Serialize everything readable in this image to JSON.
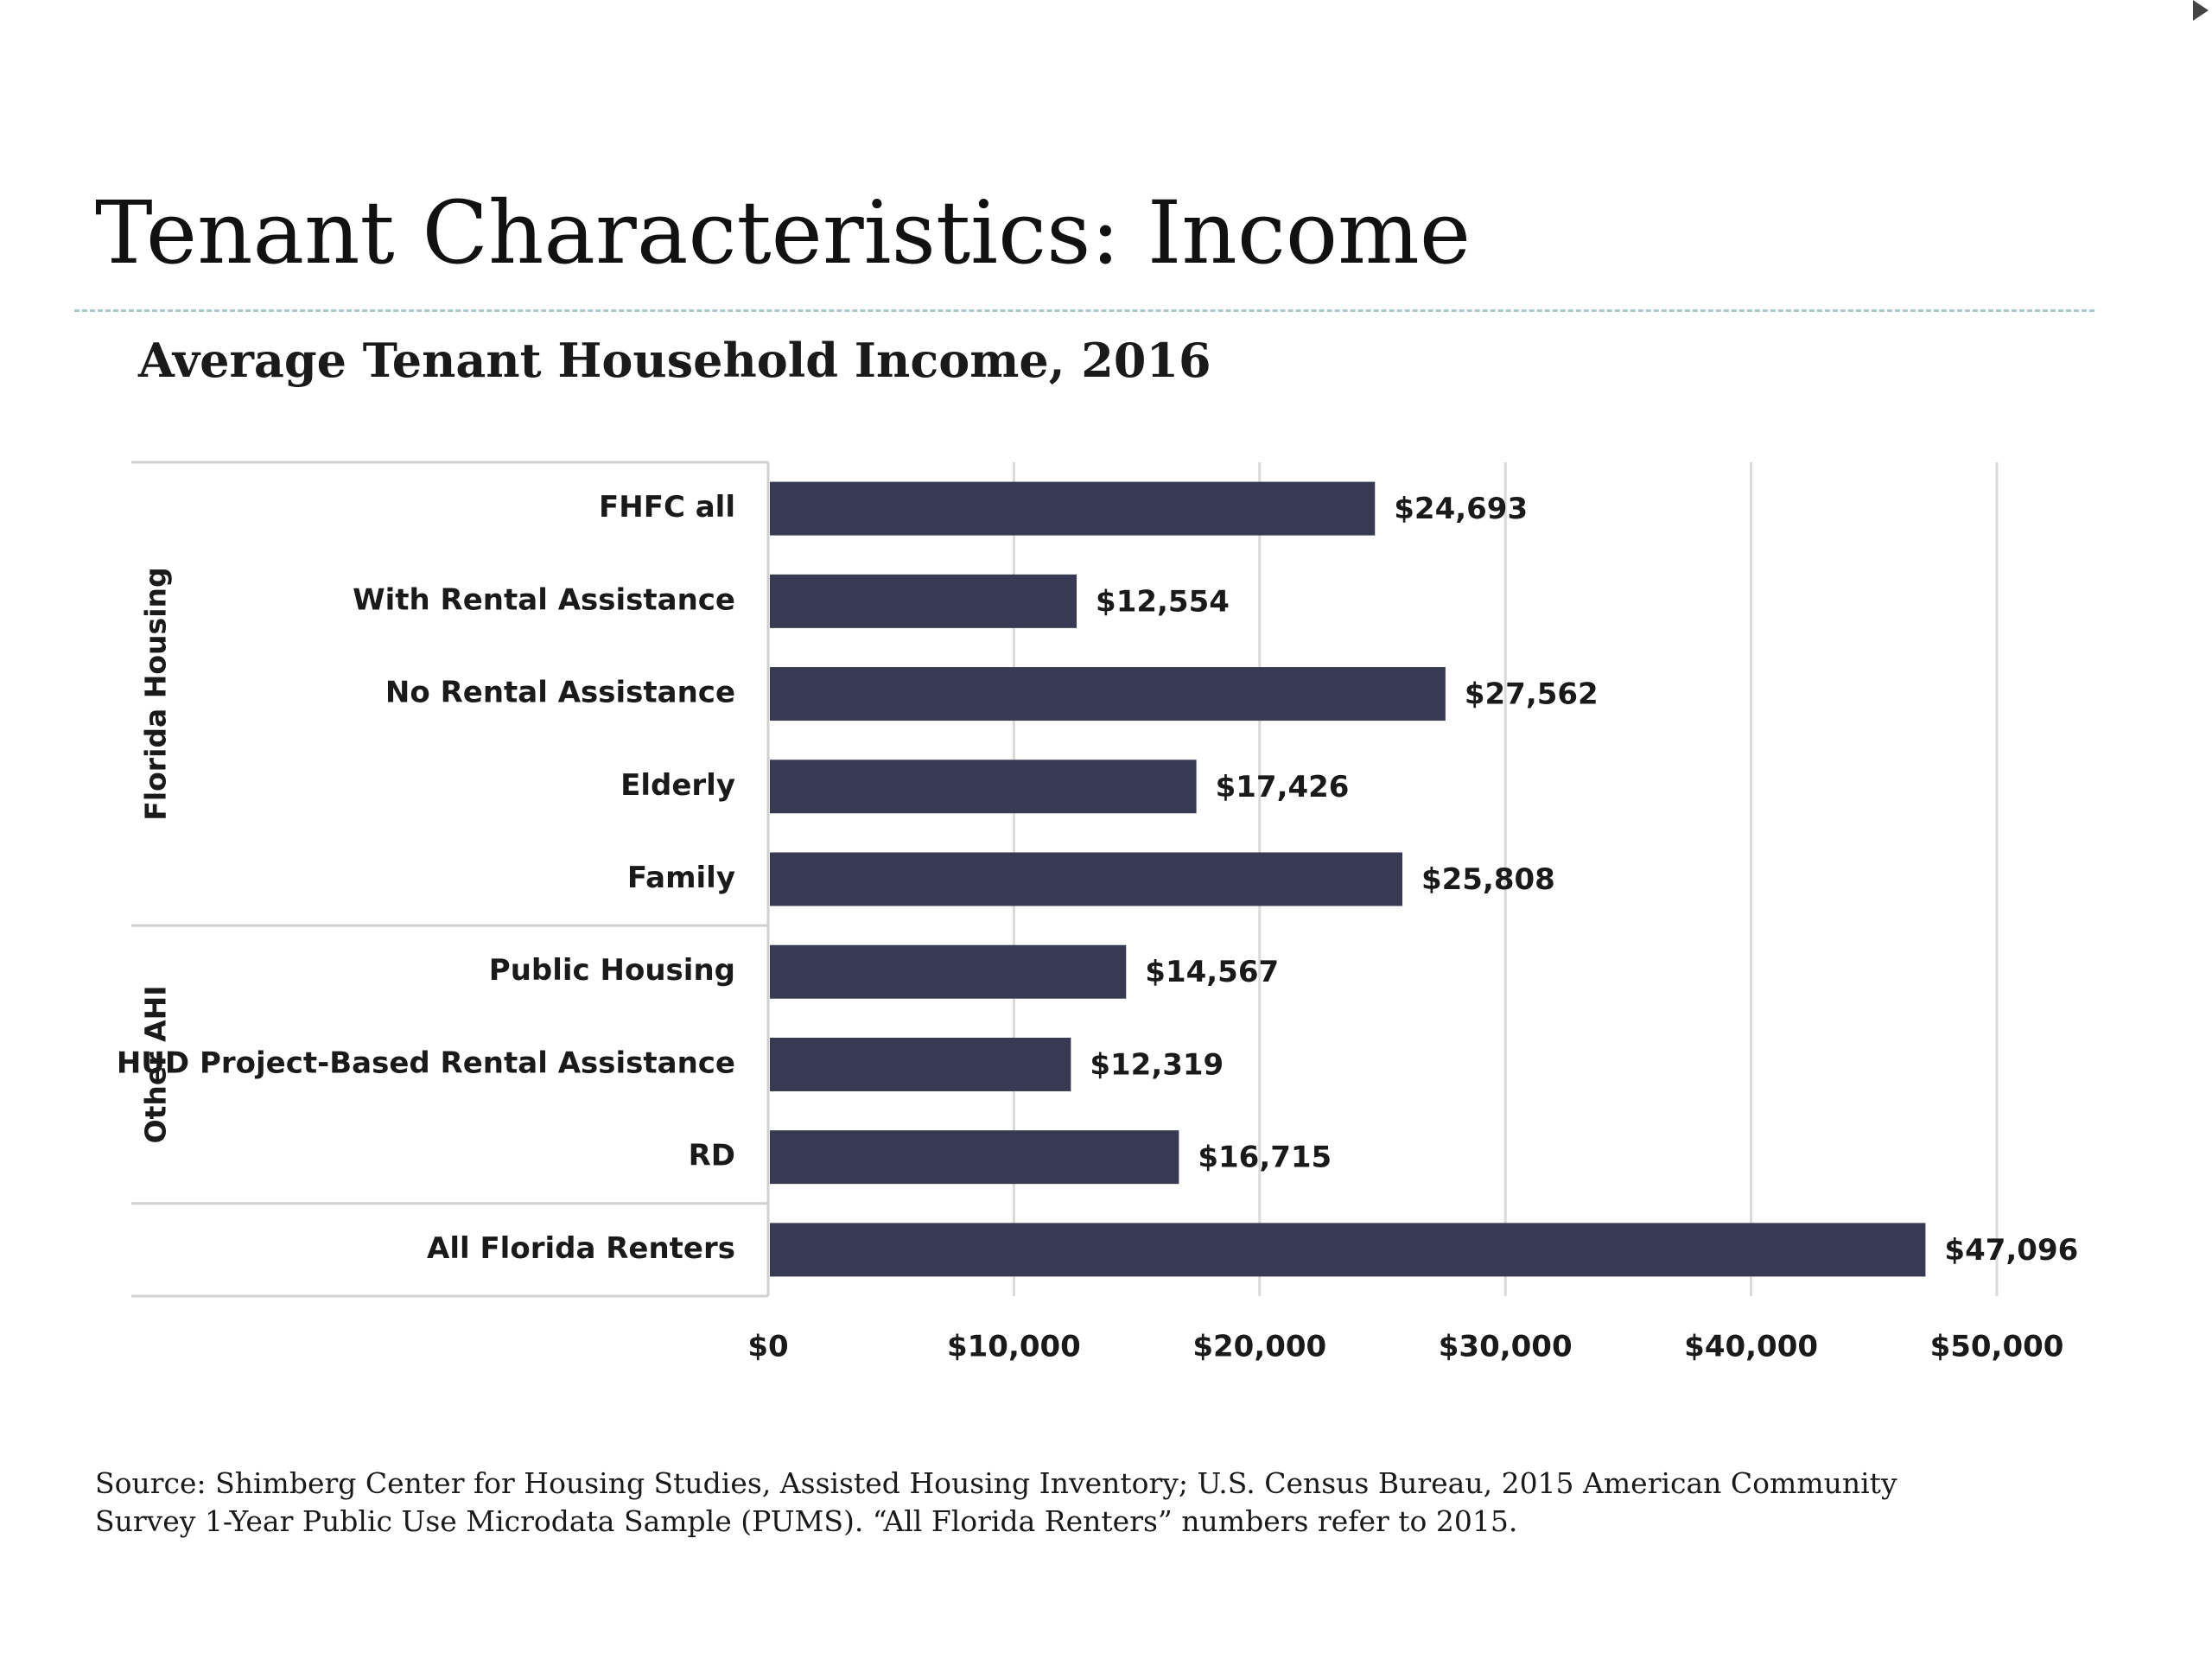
{
  "slide": {
    "title": "Tenant Characteristics: Income",
    "source_lines": [
      "Source: Shimberg Center for Housing Studies, Assisted Housing Inventory; U.S. Census Bureau, 2015 American Community",
      "Survey 1-Year Public Use Microdata Sample (PUMS). “All Florida Renters” numbers refer to 2015."
    ]
  },
  "chart_data": {
    "type": "bar",
    "orientation": "horizontal",
    "title": "Average Tenant Household Income, 2016",
    "categories": [
      "FHFC all",
      "With Rental Assistance",
      "No Rental Assistance",
      "Elderly",
      "Family",
      "Public Housing",
      "HUD Project-Based Rental Assistance",
      "RD",
      "All Florida Renters"
    ],
    "values": [
      24693,
      12554,
      27562,
      17426,
      25808,
      14567,
      12319,
      16715,
      47096
    ],
    "data_labels": [
      "$24,693",
      "$12,554",
      "$27,562",
      "$17,426",
      "$25,808",
      "$14,567",
      "$12,319",
      "$16,715",
      "$47,096"
    ],
    "groups": [
      {
        "label": "Florida Housing",
        "categories": [
          "FHFC all",
          "With Rental Assistance",
          "No Rental Assistance",
          "Elderly",
          "Family"
        ]
      },
      {
        "label": "Other AHI",
        "categories": [
          "Public Housing",
          "HUD Project-Based Rental Assistance",
          "RD"
        ]
      },
      {
        "label": "",
        "categories": [
          "All Florida Renters"
        ]
      }
    ],
    "x_ticks": [
      0,
      10000,
      20000,
      30000,
      40000,
      50000
    ],
    "x_tick_labels": [
      "$0",
      "$10,000",
      "$20,000",
      "$30,000",
      "$40,000",
      "$50,000"
    ],
    "xlim": [
      0,
      50000
    ],
    "xlabel": "",
    "ylabel": "",
    "grid": "vertical",
    "legend": "none",
    "bar_color": "#373a52"
  }
}
